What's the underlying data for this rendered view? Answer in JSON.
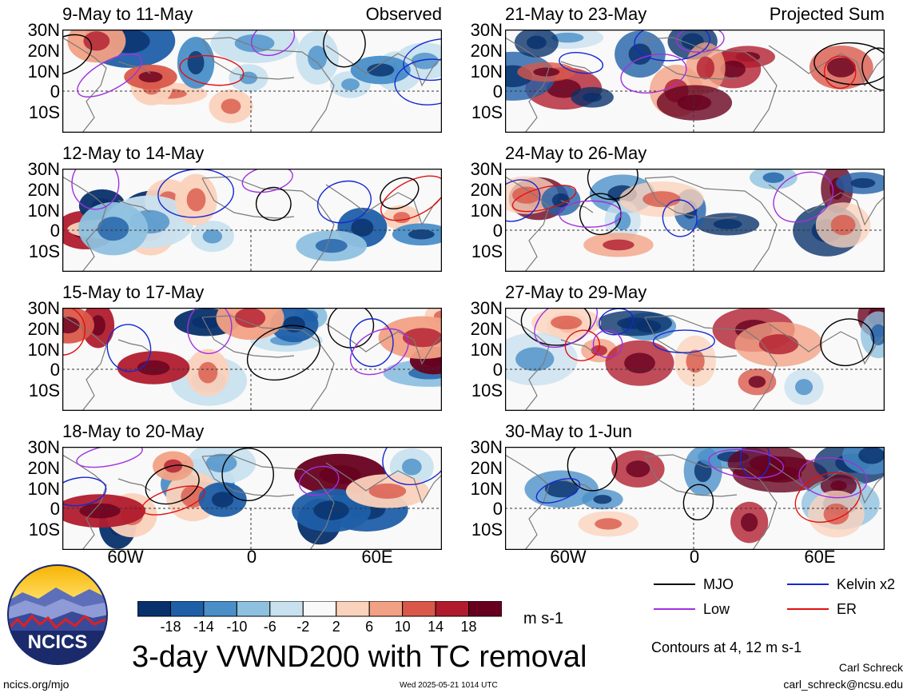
{
  "panels": [
    {
      "title": "9-May to 11-May",
      "tag": "Observed"
    },
    {
      "title": "21-May to 23-May",
      "tag": "Projected Sum"
    },
    {
      "title": "12-May to 14-May",
      "tag": ""
    },
    {
      "title": "24-May to 26-May",
      "tag": ""
    },
    {
      "title": "15-May to 17-May",
      "tag": ""
    },
    {
      "title": "27-May to 29-May",
      "tag": ""
    },
    {
      "title": "18-May to 20-May",
      "tag": ""
    },
    {
      "title": "30-May to 1-Jun",
      "tag": ""
    }
  ],
  "lat_labels": [
    "30N",
    "20N",
    "10N",
    "0",
    "10S"
  ],
  "lon_labels": [
    "60W",
    "0",
    "60E"
  ],
  "colorbar": {
    "ticks": [
      "-18",
      "-14",
      "-10",
      "-6",
      "-2",
      "2",
      "6",
      "10",
      "14",
      "18"
    ],
    "colors": [
      "#08306b",
      "#1f5fa8",
      "#4a8fc8",
      "#8ec1df",
      "#c9e1ef",
      "#f9f9f9",
      "#fbd2bc",
      "#f2a184",
      "#d9584a",
      "#b01c2e",
      "#67001f"
    ],
    "units": "m s-1"
  },
  "title": "3-day VWND200 with TC removal",
  "legend": [
    {
      "label": "MJO",
      "color": "#000000"
    },
    {
      "label": "Kelvin x2",
      "color": "#1428d2"
    },
    {
      "label": "Low",
      "color": "#a030e0"
    },
    {
      "label": "ER",
      "color": "#e01010"
    }
  ],
  "contours_note": "Contours at 4, 12 m s-1",
  "credit_name": "Carl Schreck",
  "credit_email": "carl_schreck@ncsu.edu",
  "site_url": "ncics.org/mjo",
  "timestamp": "Wed 2025-05-21 1014 UTC",
  "logo_text": "NCICS"
}
